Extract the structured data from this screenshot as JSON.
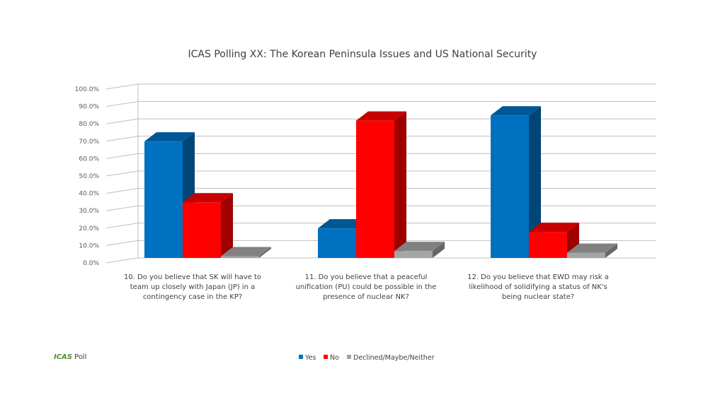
{
  "brand": {
    "logo": "ICAS",
    "label": "Poll"
  },
  "colors": {
    "yes": "#0070c0",
    "no": "#ff0000",
    "declined": "#a5a5a5"
  },
  "chart_data": {
    "type": "bar",
    "title": "ICAS Polling XX: The Korean Peninsula Issues and US National Security",
    "xlabel": "",
    "ylabel": "",
    "ylim": [
      0,
      100
    ],
    "y_ticks": [
      "0.0%",
      "10.0%",
      "20.0%",
      "30.0%",
      "40.0%",
      "50.0%",
      "60.0%",
      "70.0%",
      "80.0%",
      "90.0%",
      "100.0%"
    ],
    "grid": true,
    "legend_position": "bottom",
    "categories": [
      [
        "10.     Do you believe that SK will have to",
        "team up closely with Japan (JP) in a",
        "contingency case in the KP?"
      ],
      [
        "11.     Do you believe that a peaceful",
        "unification (PU) could be possible in the",
        "presence of nuclear NK?"
      ],
      [
        "12.     Do you believe that EWD may risk a",
        "likelihood of solidifying a status of NK's",
        "being nuclear state?"
      ]
    ],
    "series": [
      {
        "name": "Yes",
        "values": [
          67,
          17,
          82
        ]
      },
      {
        "name": "No",
        "values": [
          32,
          79,
          15
        ]
      },
      {
        "name": "Declined/Maybe/Neither",
        "values": [
          1,
          4,
          3
        ]
      }
    ]
  }
}
